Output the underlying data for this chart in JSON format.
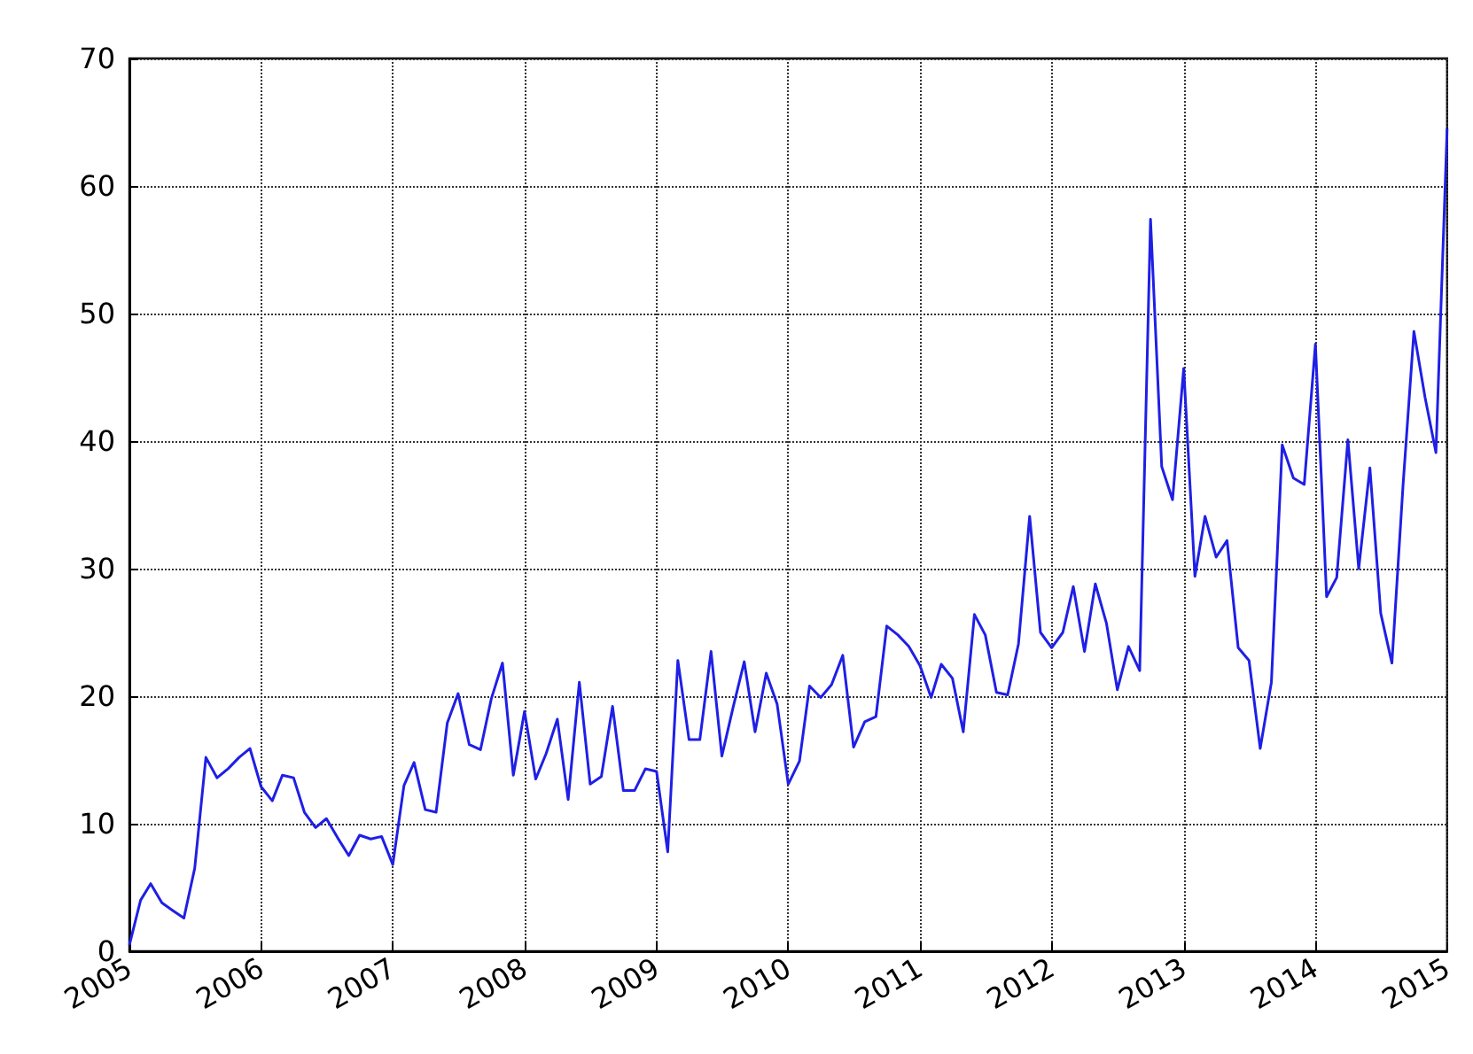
{
  "chart_data": {
    "type": "line",
    "x": [
      "2005-01",
      "2005-02",
      "2005-03",
      "2005-04",
      "2005-05",
      "2005-06",
      "2005-07",
      "2005-08",
      "2005-09",
      "2005-10",
      "2005-11",
      "2005-12",
      "2006-01",
      "2006-02",
      "2006-03",
      "2006-04",
      "2006-05",
      "2006-06",
      "2006-07",
      "2006-08",
      "2006-09",
      "2006-10",
      "2006-11",
      "2006-12",
      "2007-01",
      "2007-02",
      "2007-03",
      "2007-04",
      "2007-05",
      "2007-06",
      "2007-07",
      "2007-08",
      "2007-09",
      "2007-10",
      "2007-11",
      "2007-12",
      "2008-01",
      "2008-02",
      "2008-03",
      "2008-04",
      "2008-05",
      "2008-06",
      "2008-07",
      "2008-08",
      "2008-09",
      "2008-10",
      "2008-11",
      "2008-12",
      "2009-01",
      "2009-02",
      "2009-03",
      "2009-04",
      "2009-05",
      "2009-06",
      "2009-07",
      "2009-08",
      "2009-09",
      "2009-10",
      "2009-11",
      "2009-12",
      "2010-01",
      "2010-02",
      "2010-03",
      "2010-04",
      "2010-05",
      "2010-06",
      "2010-07",
      "2010-08",
      "2010-09",
      "2010-10",
      "2010-11",
      "2010-12",
      "2011-01",
      "2011-02",
      "2011-03",
      "2011-04",
      "2011-05",
      "2011-06",
      "2011-07",
      "2011-08",
      "2011-09",
      "2011-10",
      "2011-11",
      "2011-12",
      "2012-01",
      "2012-02",
      "2012-03",
      "2012-04",
      "2012-05",
      "2012-06",
      "2012-07",
      "2012-08",
      "2012-09",
      "2012-10",
      "2012-11",
      "2012-12",
      "2013-01",
      "2013-02",
      "2013-03",
      "2013-04",
      "2013-05",
      "2013-06",
      "2013-07",
      "2013-08",
      "2013-09",
      "2013-10",
      "2013-11",
      "2013-12",
      "2014-01",
      "2014-02",
      "2014-03",
      "2014-04",
      "2014-05",
      "2014-06",
      "2014-07",
      "2014-08",
      "2014-09",
      "2014-10",
      "2014-11",
      "2014-12",
      "2015-01"
    ],
    "series": [
      {
        "color": "#1f1fe6",
        "values": [
          0.5,
          4,
          5.3,
          3.8,
          3.2,
          2.6,
          6.5,
          15.2,
          13.6,
          14.3,
          15.2,
          15.9,
          12.9,
          11.8,
          13.8,
          13.6,
          10.9,
          9.7,
          10.4,
          8.9,
          7.5,
          9.1,
          8.8,
          9,
          6.8,
          13,
          14.8,
          11.1,
          10.9,
          17.9,
          20.2,
          16.2,
          15.8,
          19.8,
          22.6,
          13.8,
          18.8,
          13.5,
          15.5,
          18.2,
          11.9,
          21.1,
          13.1,
          13.7,
          19.2,
          12.6,
          12.6,
          14.3,
          14.1,
          7.8,
          22.8,
          16.6,
          16.6,
          23.5,
          15.3,
          19.1,
          22.7,
          17.2,
          21.8,
          19.4,
          13.1,
          14.9,
          20.8,
          19.9,
          20.9,
          23.2,
          16,
          18,
          18.4,
          25.5,
          24.8,
          23.9,
          22.4,
          19.9,
          22.5,
          21.4,
          17.2,
          26.4,
          24.8,
          20.3,
          20.1,
          24.1,
          34.1,
          25,
          23.8,
          25,
          28.6,
          23.5,
          28.8,
          25.7,
          20.5,
          23.9,
          22,
          57.4,
          38,
          35.4,
          45.7,
          29.4,
          34.1,
          30.9,
          32.2,
          23.8,
          22.8,
          15.9,
          21.1,
          39.7,
          37.1,
          36.6,
          47.6,
          27.8,
          29.3,
          40.1,
          30,
          37.9,
          26.5,
          22.6,
          36.6,
          48.6,
          43.4,
          39.1,
          64.5
        ]
      }
    ],
    "xlim": [
      "2005",
      "2015"
    ],
    "xticks": [
      "2005",
      "2006",
      "2007",
      "2008",
      "2009",
      "2010",
      "2011",
      "2012",
      "2013",
      "2014",
      "2015"
    ],
    "ylim": [
      0,
      70
    ],
    "yticks": [
      0,
      10,
      20,
      30,
      40,
      50,
      60,
      70
    ],
    "grid": true,
    "line_style": "solid"
  }
}
